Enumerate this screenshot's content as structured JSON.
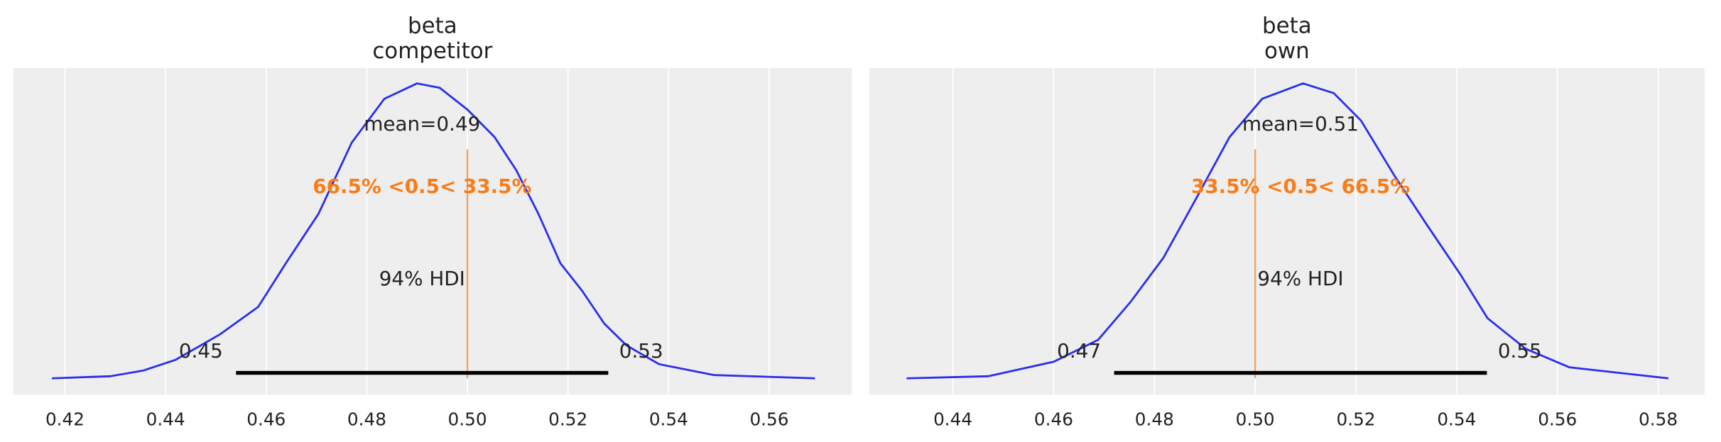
{
  "chart_data": [
    {
      "type": "line",
      "title_lines": [
        "beta",
        "competitor"
      ],
      "xlim": [
        0.4097,
        0.5764
      ],
      "xticks": [
        0.42,
        0.44,
        0.46,
        0.48,
        0.5,
        0.52,
        0.54,
        0.56
      ],
      "xtick_labels": [
        "0.42",
        "0.44",
        "0.46",
        "0.48",
        "0.50",
        "0.52",
        "0.54",
        "0.56"
      ],
      "grid": "vertical",
      "density": {
        "x": [
          0.4174,
          0.429,
          0.4355,
          0.442,
          0.4508,
          0.4584,
          0.4639,
          0.4704,
          0.477,
          0.4835,
          0.49,
          0.4945,
          0.5,
          0.5054,
          0.5097,
          0.5141,
          0.5185,
          0.5228,
          0.5272,
          0.5316,
          0.5381,
          0.549,
          0.5691
        ],
        "y": [
          0,
          0.007,
          0.026,
          0.063,
          0.149,
          0.242,
          0.39,
          0.558,
          0.799,
          0.948,
          1.0,
          0.985,
          0.911,
          0.818,
          0.706,
          0.558,
          0.39,
          0.297,
          0.186,
          0.112,
          0.048,
          0.011,
          0
        ]
      },
      "mean_label": "mean=0.49",
      "ref_value": 0.5,
      "ref_label": "66.5% <0.5< 33.5%",
      "hdi_label": "94% HDI",
      "hdi": [
        0.454,
        0.528
      ],
      "hdi_low_label": "0.45",
      "hdi_high_label": "0.53"
    },
    {
      "type": "line",
      "title_lines": [
        "beta",
        "own"
      ],
      "xlim": [
        0.4234,
        0.5892
      ],
      "xticks": [
        0.44,
        0.46,
        0.48,
        0.5,
        0.52,
        0.54,
        0.56,
        0.58
      ],
      "xtick_labels": [
        "0.44",
        "0.46",
        "0.48",
        "0.50",
        "0.52",
        "0.54",
        "0.56",
        "0.58"
      ],
      "grid": "vertical",
      "density": {
        "x": [
          0.4308,
          0.447,
          0.46,
          0.4688,
          0.4753,
          0.4818,
          0.4884,
          0.4949,
          0.5014,
          0.5095,
          0.5156,
          0.521,
          0.5276,
          0.5341,
          0.5407,
          0.5461,
          0.5537,
          0.5624,
          0.582
        ],
        "y": [
          0,
          0.007,
          0.056,
          0.13,
          0.26,
          0.409,
          0.613,
          0.818,
          0.948,
          1.0,
          0.967,
          0.874,
          0.688,
          0.52,
          0.353,
          0.204,
          0.1,
          0.037,
          0
        ]
      },
      "mean_label": "mean=0.51",
      "ref_value": 0.5,
      "ref_label": "33.5% <0.5< 66.5%",
      "hdi_label": "94% HDI",
      "hdi": [
        0.472,
        0.546
      ],
      "hdi_low_label": "0.47",
      "hdi_high_label": "0.55"
    }
  ],
  "colors": {
    "background": "#eeeeee",
    "grid": "#ffffff",
    "density": "#2a2eec",
    "ref_text": "#fa7c17",
    "ref_line": "#f5a060",
    "hdi": "#000000"
  }
}
